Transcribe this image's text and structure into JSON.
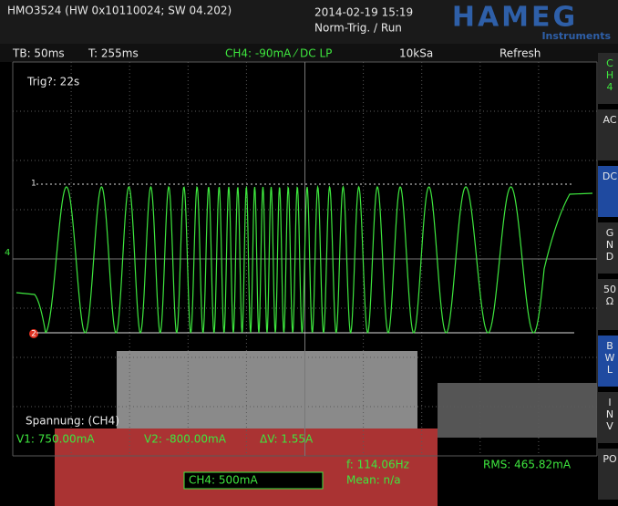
{
  "header": {
    "model": "HMO3524 (HW 0x10110024; SW 04.202)",
    "datetime": "2014-02-19 15:19",
    "trigger_mode": "Norm-Trig. / Run",
    "brand": "HAMEG",
    "brand_sub": "Instruments"
  },
  "status": {
    "timebase": "TB: 50ms",
    "trigger_time": "T: 255ms",
    "channel": "CH4: -90mA ⁄ DC LP",
    "sample_rate": "10kSa",
    "mode": "Refresh"
  },
  "side_menu": [
    [
      "C",
      "H",
      "4"
    ],
    [
      "AC"
    ],
    [
      "DC"
    ],
    [
      "G",
      "N",
      "D"
    ],
    [
      "50",
      "Ω"
    ],
    [
      "B",
      "W",
      "L"
    ],
    [
      "I",
      "N",
      "V"
    ],
    [
      "PO"
    ]
  ],
  "screen": {
    "trigger_info": "Trig?: 22s",
    "marker_1": "1",
    "marker_4": "4",
    "marker_2": "2"
  },
  "measure": {
    "title": "Spannung: (CH4)",
    "v1": "V1: 750.00mA",
    "v2": "V2: -800.00mA",
    "dv": "ΔV: 1.55A",
    "freq": "f: 114.06Hz",
    "rms": "RMS: 465.82mA",
    "mean": "Mean: n/a",
    "channel_scale": "CH4: 500mA"
  }
}
